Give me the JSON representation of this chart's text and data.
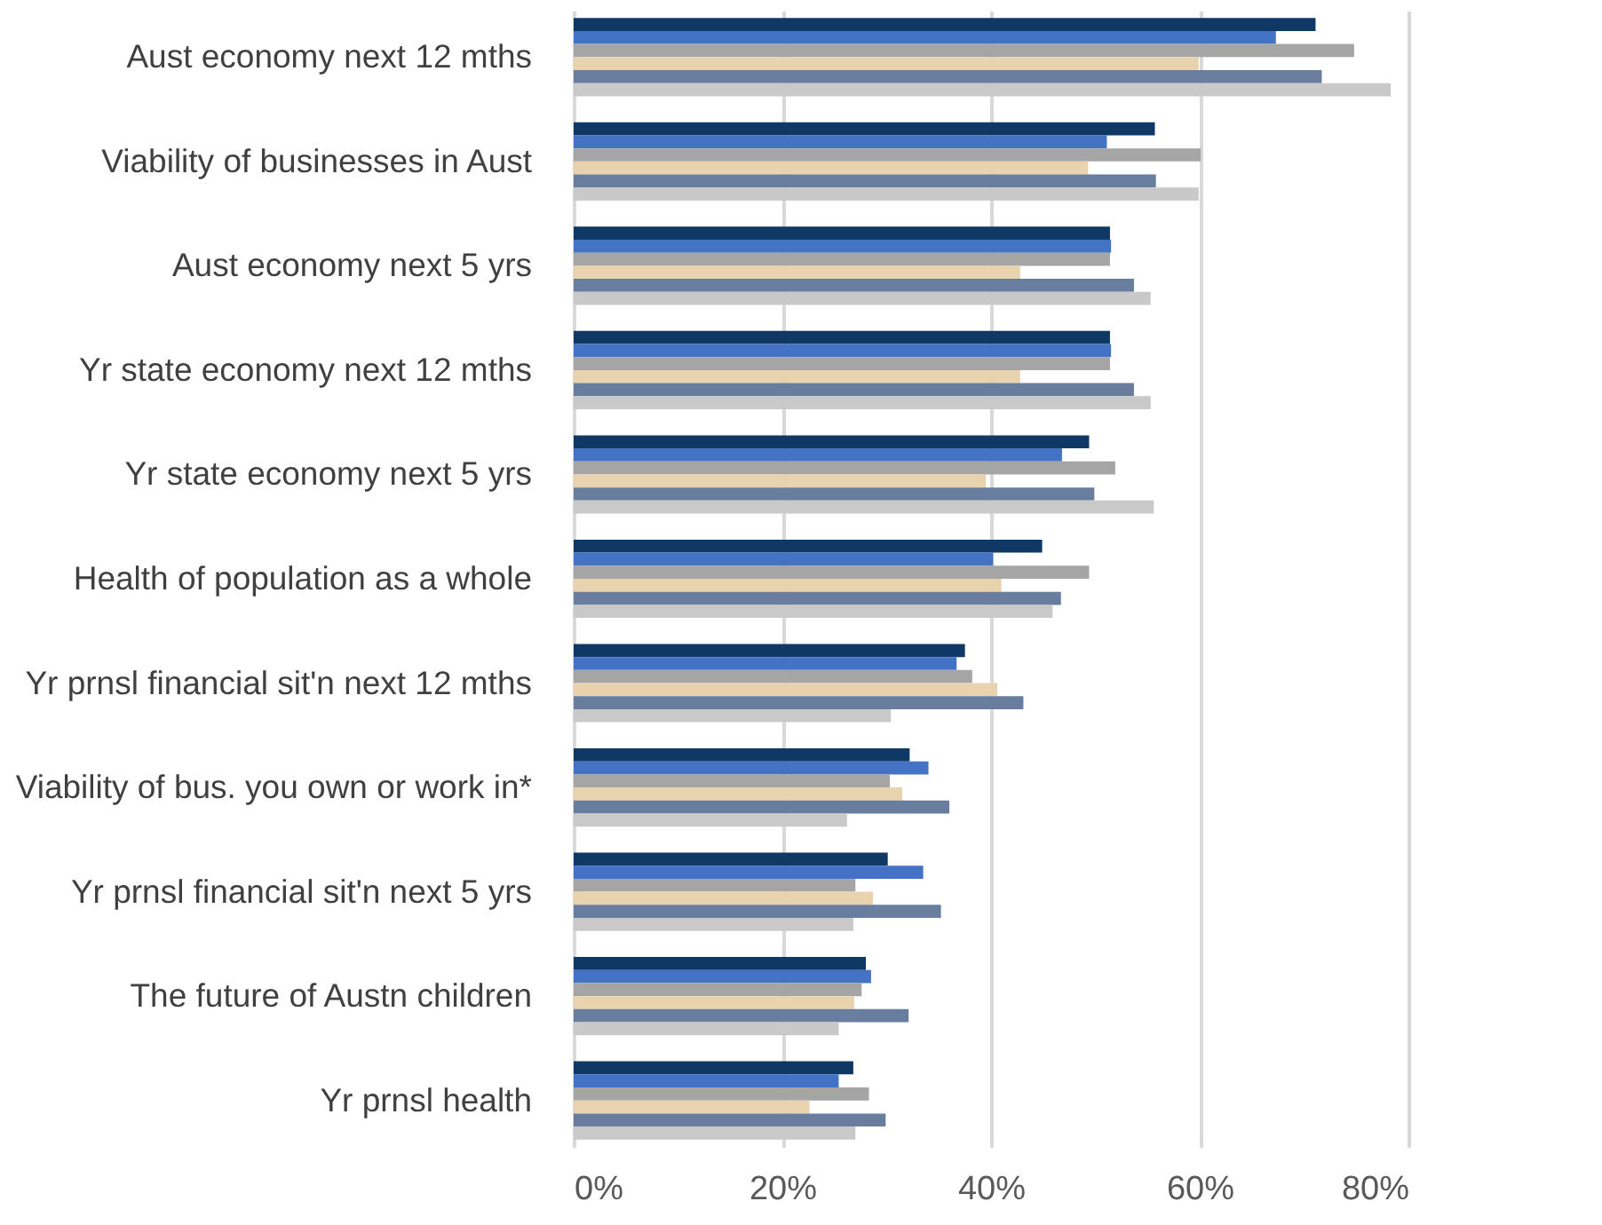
{
  "chart_data": {
    "type": "bar",
    "orientation": "horizontal",
    "grid": "x",
    "categories": [
      "Aust economy next 12 mths",
      "Viability of businesses in Aust",
      "Aust economy next 5 yrs",
      "Yr state economy next 12 mths",
      "Yr state economy next 5 yrs",
      "Health of population as a whole",
      "Yr prnsl financial sit'n next 12 mths",
      "Viability of bus. you own or work in*",
      "Yr prnsl financial sit'n next 5 yrs",
      "The future of Austn children",
      "Yr prnsl health"
    ],
    "series": [
      {
        "color": "#0f3864",
        "values": [
          71.1,
          55.7,
          51.4,
          51.4,
          49.4,
          44.9,
          37.5,
          32.2,
          30.1,
          28.0,
          26.8
        ]
      },
      {
        "color": "#4472c4",
        "values": [
          67.3,
          51.1,
          51.5,
          51.5,
          46.8,
          40.2,
          36.7,
          34.0,
          33.5,
          28.5,
          25.4
        ]
      },
      {
        "color": "#a5a5a5",
        "values": [
          74.8,
          60.1,
          51.4,
          51.4,
          51.9,
          49.4,
          38.2,
          30.3,
          27.0,
          27.6,
          28.3
        ]
      },
      {
        "color": "#e9d2ae",
        "values": [
          59.9,
          49.3,
          42.8,
          42.8,
          39.5,
          41.0,
          40.6,
          31.5,
          28.7,
          26.9,
          22.6
        ]
      },
      {
        "color": "#697e9f",
        "values": [
          71.7,
          55.8,
          53.7,
          53.7,
          49.9,
          46.7,
          43.1,
          36.0,
          35.2,
          32.1,
          29.9
        ]
      },
      {
        "color": "#c9c9c9",
        "values": [
          78.3,
          59.9,
          55.3,
          55.3,
          55.6,
          45.9,
          30.4,
          26.2,
          26.8,
          25.4,
          27.0
        ]
      }
    ],
    "xlim": [
      0,
      80
    ],
    "xticks": [
      {
        "value": 0,
        "label": "0%"
      },
      {
        "value": 20,
        "label": "20%"
      },
      {
        "value": 40,
        "label": "40%"
      },
      {
        "value": 60,
        "label": "60%"
      },
      {
        "value": 80,
        "label": "80%"
      }
    ]
  }
}
